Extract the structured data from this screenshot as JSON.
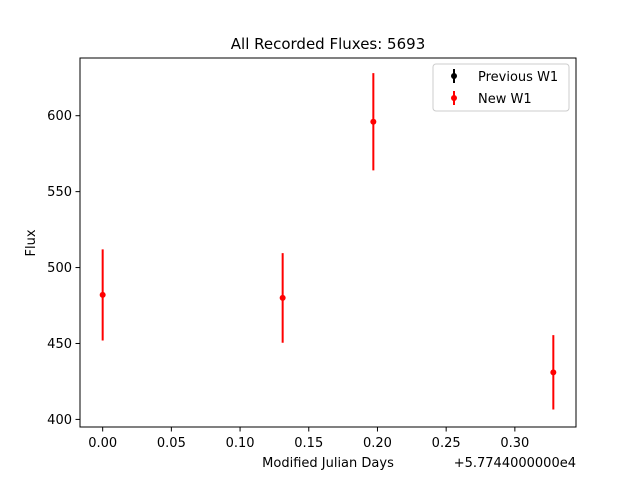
{
  "chart_data": {
    "type": "scatter",
    "title": "All Recorded Fluxes: 5693",
    "xlabel": "Modified Julian Days",
    "ylabel": "Flux",
    "x_offset_label": "+5.7744000000e4",
    "xlim": [
      -0.0165,
      0.3445
    ],
    "ylim": [
      395,
      638
    ],
    "xticks": [
      0.0,
      0.05,
      0.1,
      0.15,
      0.2,
      0.25,
      0.3
    ],
    "xtick_labels": [
      "0.00",
      "0.05",
      "0.10",
      "0.15",
      "0.20",
      "0.25",
      "0.30"
    ],
    "yticks": [
      400,
      450,
      500,
      550,
      600
    ],
    "ytick_labels": [
      "400",
      "450",
      "500",
      "550",
      "600"
    ],
    "grid": false,
    "legend_position": "top-right",
    "series": [
      {
        "name": "Previous W1",
        "color": "#000000",
        "points": []
      },
      {
        "name": "New W1",
        "color": "#ff0000",
        "points": [
          {
            "x": 0.0,
            "y": 482,
            "yerr": 30
          },
          {
            "x": 0.131,
            "y": 480,
            "yerr": 29.5
          },
          {
            "x": 0.197,
            "y": 596,
            "yerr": 32
          },
          {
            "x": 0.328,
            "y": 431,
            "yerr": 24.5
          }
        ]
      }
    ]
  }
}
